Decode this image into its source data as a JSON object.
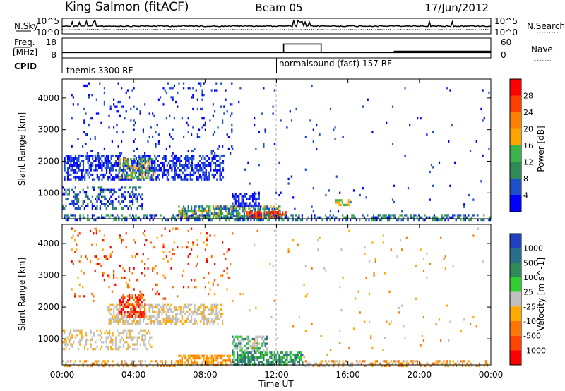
{
  "header": {
    "station": "King Salmon (fitACF)",
    "beam": "Beam 05",
    "date": "17/Jun/2012"
  },
  "noise_panel": {
    "left_label": "N.Sky",
    "left_ticks": [
      "10^5",
      "10^0"
    ],
    "right_label": "N.Search",
    "right_ticks": [
      "10^5",
      "10^0"
    ]
  },
  "freq_panel": {
    "left_label_top": "Freq.",
    "left_label_bottom": "[MHz]",
    "left_ticks": [
      "18",
      "8"
    ],
    "right_label": "Nave",
    "right_ticks": [
      "60",
      "0"
    ],
    "freq_segments": [
      [
        0.0,
        10.6
      ],
      [
        14.0,
        10.6
      ]
    ],
    "nave_segments": [
      [
        0.0,
        10
      ],
      [
        10.6,
        10
      ],
      [
        14.3,
        10
      ]
    ]
  },
  "cpid": {
    "label": "CPID",
    "modes": [
      {
        "name": "themis 3300 RF",
        "start": 0.0
      },
      {
        "name": "normalsound (fast) 157 RF",
        "start": 12.0
      }
    ]
  },
  "x_axis": {
    "label": "Time UT",
    "ticks": [
      "00:00",
      "04:00",
      "08:00",
      "12:00",
      "16:00",
      "20:00",
      "00:00"
    ],
    "range_hours": [
      0,
      24
    ]
  },
  "chart_data": [
    {
      "type": "heatmap",
      "name": "power",
      "ylabel": "Slant Range [km]",
      "ylim": [
        180,
        4600
      ],
      "yticks": [
        "1000",
        "2000",
        "3000",
        "4000"
      ],
      "xlim_hours": [
        0,
        24
      ],
      "colorbar": {
        "label": "Power [dB]",
        "ticks": [
          "4",
          "8",
          "12",
          "16",
          "20",
          "24",
          "28"
        ],
        "colors": [
          "#0000ff",
          "#1e50c8",
          "#2e8b57",
          "#3cb44b",
          "#ffa500",
          "#ff7f00",
          "#ff4000",
          "#ff0000"
        ]
      },
      "regions": [
        {
          "t": [
            0.1,
            9.0
          ],
          "r": [
            1400,
            2200
          ],
          "density": 0.55,
          "levels": [
            0,
            1
          ]
        },
        {
          "t": [
            3.2,
            5.2
          ],
          "r": [
            1500,
            2100
          ],
          "density": 0.5,
          "levels": [
            2,
            3,
            4
          ]
        },
        {
          "t": [
            0.0,
            4.5
          ],
          "r": [
            500,
            1200
          ],
          "density": 0.35,
          "levels": [
            0,
            1,
            2
          ]
        },
        {
          "t": [
            6.5,
            12.2
          ],
          "r": [
            200,
            600
          ],
          "density": 0.7,
          "levels": [
            1,
            2,
            3,
            4
          ]
        },
        {
          "t": [
            10.3,
            12.5
          ],
          "r": [
            200,
            420
          ],
          "density": 0.8,
          "levels": [
            5,
            6,
            7
          ]
        },
        {
          "t": [
            9.5,
            11.0
          ],
          "r": [
            600,
            1000
          ],
          "density": 0.6,
          "levels": [
            0,
            1
          ]
        },
        {
          "t": [
            0.0,
            24.0
          ],
          "r": [
            180,
            330
          ],
          "density": 0.45,
          "levels": [
            0,
            1,
            2,
            3
          ]
        },
        {
          "t": [
            0.5,
            9.5
          ],
          "r": [
            2200,
            4500
          ],
          "density": 0.06,
          "levels": [
            0,
            1
          ]
        },
        {
          "t": [
            9.5,
            24.0
          ],
          "r": [
            400,
            4500
          ],
          "density": 0.012,
          "levels": [
            0,
            1
          ]
        },
        {
          "t": [
            15.3,
            16.0
          ],
          "r": [
            600,
            800
          ],
          "density": 0.7,
          "levels": [
            3,
            4
          ]
        }
      ]
    },
    {
      "type": "heatmap",
      "name": "velocity",
      "ylabel": "Slant Range [km]",
      "ylim": [
        180,
        4600
      ],
      "yticks": [
        "1000",
        "2000",
        "3000",
        "4000"
      ],
      "xlim_hours": [
        0,
        24
      ],
      "colorbar": {
        "label": "Velocity [m s^-1]",
        "ticks": [
          "1000",
          "500",
          "100",
          "25",
          "-25",
          "-100",
          "-500",
          "-1000"
        ],
        "colors": [
          "#2040c0",
          "#2a6e8c",
          "#2e8b57",
          "#33cc33",
          "#c0c0c0",
          "#ffaa00",
          "#ff7700",
          "#ff4400",
          "#ff0000"
        ]
      },
      "regions": [
        {
          "t": [
            2.5,
            9.0
          ],
          "r": [
            1500,
            2100
          ],
          "density": 0.55,
          "levels": [
            4,
            4,
            5
          ]
        },
        {
          "t": [
            3.2,
            4.6
          ],
          "r": [
            1700,
            2400
          ],
          "density": 0.6,
          "levels": [
            7,
            8,
            6
          ]
        },
        {
          "t": [
            0.0,
            5.0
          ],
          "r": [
            700,
            1300
          ],
          "density": 0.35,
          "levels": [
            4,
            4,
            5
          ]
        },
        {
          "t": [
            6.5,
            9.5
          ],
          "r": [
            200,
            500
          ],
          "density": 0.65,
          "levels": [
            5,
            6
          ]
        },
        {
          "t": [
            9.5,
            13.5
          ],
          "r": [
            200,
            600
          ],
          "density": 0.7,
          "levels": [
            1,
            2,
            3
          ]
        },
        {
          "t": [
            9.5,
            11.5
          ],
          "r": [
            600,
            1100
          ],
          "density": 0.6,
          "levels": [
            3,
            4,
            1
          ]
        },
        {
          "t": [
            13.5,
            24.0
          ],
          "r": [
            180,
            330
          ],
          "density": 0.4,
          "levels": [
            4,
            5,
            6
          ]
        },
        {
          "t": [
            0.0,
            6.5
          ],
          "r": [
            180,
            330
          ],
          "density": 0.4,
          "levels": [
            5,
            6,
            4
          ]
        },
        {
          "t": [
            0.5,
            9.5
          ],
          "r": [
            2200,
            4500
          ],
          "density": 0.06,
          "levels": [
            5,
            6,
            7,
            8
          ]
        },
        {
          "t": [
            9.5,
            24.0
          ],
          "r": [
            400,
            4500
          ],
          "density": 0.012,
          "levels": [
            4,
            5,
            6
          ]
        }
      ]
    }
  ]
}
